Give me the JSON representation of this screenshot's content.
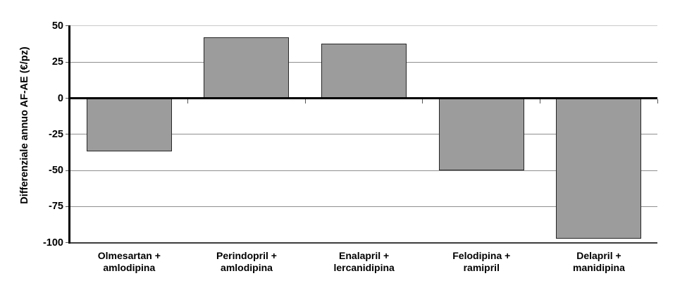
{
  "chart_data": {
    "type": "bar",
    "title": "",
    "ylabel": "Differenziale annuo AF-AE (€/pz)",
    "xlabel": "",
    "categories": [
      {
        "full": "Olmesartan + amlodipina",
        "lines": [
          "Olmesartan +",
          "amlodipina"
        ]
      },
      {
        "full": "Perindopril + amlodipina",
        "lines": [
          "Perindopril +",
          "amlodipina"
        ]
      },
      {
        "full": "Enalapril + lercanidipina",
        "lines": [
          "Enalapril +",
          "lercanidipina"
        ]
      },
      {
        "full": "Felodipina + ramipril",
        "lines": [
          "Felodipina +",
          "ramipril"
        ]
      },
      {
        "full": "Delapril + manidipina",
        "lines": [
          "Delapril +",
          "manidipina"
        ]
      }
    ],
    "values": [
      -37,
      42,
      38,
      -50,
      -97
    ],
    "yticks": [
      50,
      25,
      0,
      -25,
      -50,
      -75,
      -100
    ],
    "ylim": [
      -100,
      50
    ],
    "grid": "horizontal",
    "legend": "none",
    "colors": {
      "background": "#ffffff",
      "bar_fill": "#9c9c9c",
      "bar_border": "#262626",
      "gridline": "#8f8f8f",
      "gridline_top": "#c9c9c9",
      "bottom_line": "#3d3d3d",
      "zero_line": "#000000",
      "axis": "#000000",
      "tick": "#555555",
      "text": "#000000"
    }
  }
}
